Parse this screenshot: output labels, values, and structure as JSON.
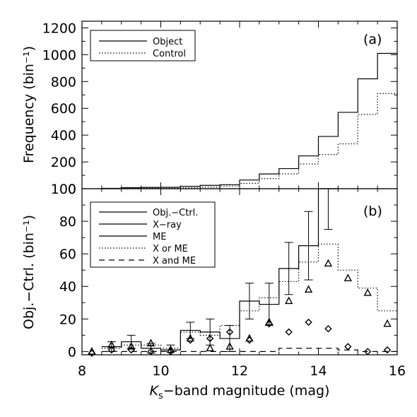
{
  "chart_data": [
    {
      "type": "line",
      "panel_label": "(a)",
      "ylabel": "Frequency (bin⁻¹)",
      "xlim": [
        8,
        16
      ],
      "ylim": [
        0,
        1250
      ],
      "x_ticks": [
        8,
        10,
        12,
        14,
        16
      ],
      "y_ticks": [
        0,
        200,
        400,
        600,
        800,
        1000,
        1200
      ],
      "grid": false,
      "legend_position": "top-left",
      "bin_edges": [
        8.5,
        9.0,
        9.5,
        10.0,
        10.5,
        11.0,
        11.5,
        12.0,
        12.5,
        13.0,
        13.5,
        14.0,
        14.5,
        15.0,
        15.5,
        16.0
      ],
      "series": [
        {
          "name": "Object",
          "style": "solid",
          "values": [
            3,
            8,
            10,
            11,
            18,
            25,
            30,
            65,
            110,
            150,
            245,
            390,
            570,
            820,
            1010
          ]
        },
        {
          "name": "Control",
          "style": "dotted",
          "values": [
            1,
            3,
            5,
            7,
            8,
            12,
            20,
            40,
            75,
            110,
            185,
            255,
            335,
            555,
            710
          ]
        }
      ]
    },
    {
      "type": "line",
      "panel_label": "(b)",
      "xlabel": "K_s-band magnitude (mag)",
      "xlabel_main": "K",
      "xlabel_sub": "s",
      "xlabel_rest": "−band magnitude (mag)",
      "ylabel": "Obj.−Ctrl. (bin⁻¹)",
      "xlim": [
        8,
        16
      ],
      "ylim": [
        -2,
        100
      ],
      "x_ticks": [
        8,
        10,
        12,
        14,
        16
      ],
      "y_ticks": [
        0,
        20,
        40,
        60,
        80,
        100
      ],
      "grid": false,
      "legend_position": "top-left",
      "legend": [
        {
          "name": "Obj.−Ctrl.",
          "style": "solid"
        },
        {
          "name": "X−ray",
          "style": "triangle"
        },
        {
          "name": "ME",
          "style": "diamond"
        },
        {
          "name": "X or ME",
          "style": "dotted"
        },
        {
          "name": "X and ME",
          "style": "dashed"
        }
      ],
      "bin_edges": [
        8.5,
        9.0,
        9.5,
        10.0,
        10.5,
        11.0,
        11.5,
        12.0,
        12.5,
        13.0,
        13.5,
        14.0,
        14.5,
        15.0,
        15.5,
        16.0
      ],
      "series": [
        {
          "name": "Obj.−Ctrl.",
          "style": "solid",
          "values": [
            3,
            6,
            2,
            1,
            13,
            12,
            8,
            31,
            29,
            51,
            65,
            100
          ],
          "errors": [
            3,
            4,
            3,
            3,
            5,
            8,
            8,
            11,
            13,
            16,
            21,
            25
          ]
        },
        {
          "name": "X or ME",
          "style": "dotted",
          "values": [
            2,
            4,
            4,
            2,
            12,
            10,
            16,
            25,
            33,
            43,
            55,
            66,
            50,
            39,
            25
          ]
        },
        {
          "name": "X and ME",
          "style": "dashed",
          "values": [
            0,
            0,
            0,
            0,
            0,
            0,
            0,
            0,
            0,
            2,
            2,
            2,
            1,
            0,
            0
          ]
        },
        {
          "name": "X−ray",
          "style": "triangle",
          "x": [
            8.25,
            8.75,
            9.25,
            9.75,
            10.25,
            10.75,
            11.25,
            11.75,
            12.25,
            12.75,
            13.25,
            13.75,
            14.25,
            14.75,
            15.25,
            15.75
          ],
          "values": [
            0,
            4,
            3,
            5,
            1,
            8,
            2,
            3,
            8,
            18,
            31,
            38,
            54,
            45,
            36,
            17
          ]
        },
        {
          "name": "ME",
          "style": "diamond",
          "x": [
            8.25,
            8.75,
            9.25,
            9.75,
            10.25,
            10.75,
            11.25,
            11.75,
            12.25,
            12.75,
            13.25,
            13.75,
            14.25,
            14.75,
            15.25,
            15.75
          ],
          "values": [
            -1,
            1,
            1,
            0,
            0,
            7,
            8,
            12,
            7,
            17,
            12,
            18,
            14,
            3,
            0,
            1
          ]
        }
      ]
    }
  ]
}
